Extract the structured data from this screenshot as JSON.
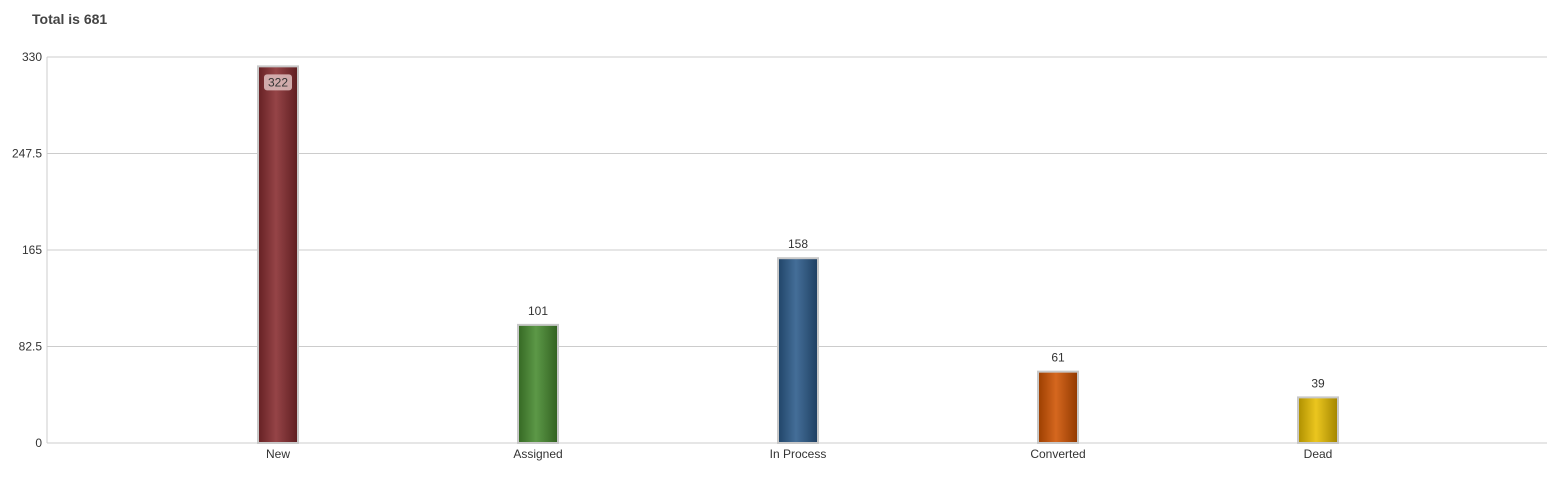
{
  "title": "Total is 681",
  "chart_data": {
    "type": "bar",
    "title": "Total is 681",
    "categories": [
      "New",
      "Assigned",
      "In Process",
      "Converted",
      "Dead"
    ],
    "values": [
      322,
      101,
      158,
      61,
      39
    ],
    "colors": [
      "#862a2e",
      "#468a2e",
      "#2b5a8a",
      "#cf5200",
      "#e8be00"
    ],
    "ylim": [
      0,
      330
    ],
    "yticks": [
      "0",
      "82.5",
      "165",
      "247.5",
      "330"
    ],
    "xlabel": "",
    "ylabel": "",
    "grid": true,
    "legend": "none"
  }
}
